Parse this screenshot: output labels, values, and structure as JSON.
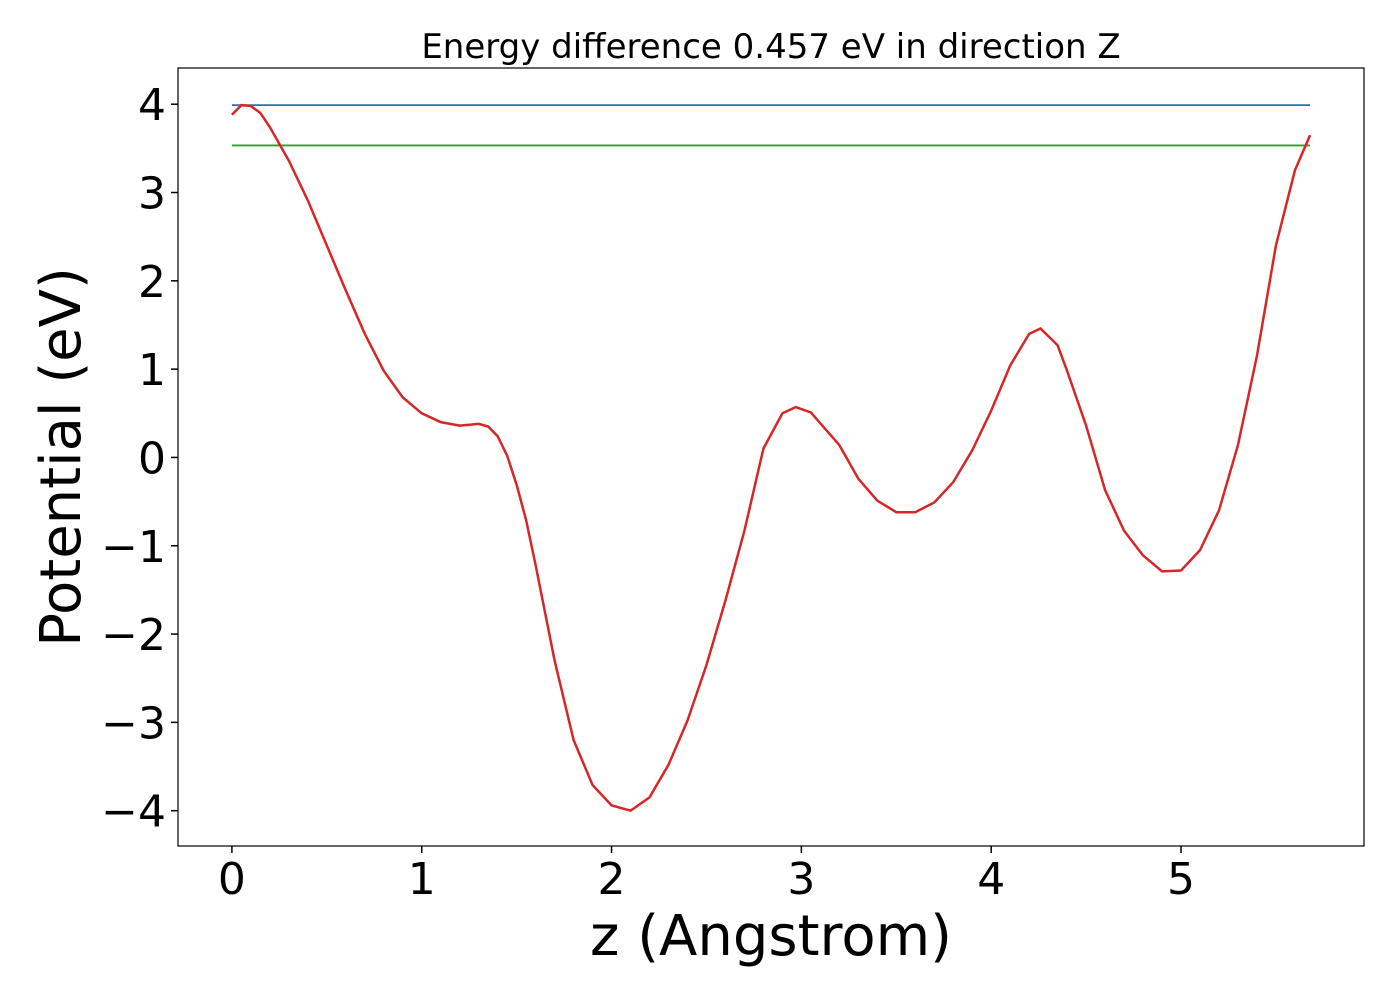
{
  "chart_data": {
    "type": "line",
    "title": "Energy difference 0.457 eV in direction Z",
    "xlabel": "z (Angstrom)",
    "ylabel": "Potential (eV)",
    "xlim": [
      -0.284,
      5.964
    ],
    "ylim": [
      -4.4,
      4.41
    ],
    "xticks": [
      0,
      1,
      2,
      3,
      4,
      5
    ],
    "yticks": [
      {
        "value": -4,
        "label": "−4"
      },
      {
        "value": -3,
        "label": "−3"
      },
      {
        "value": -2,
        "label": "−2"
      },
      {
        "value": -1,
        "label": "−1"
      },
      0,
      1,
      2,
      3,
      4
    ],
    "grid": false,
    "series": [
      {
        "color": "#1f77b4",
        "x": [
          0,
          5.68
        ],
        "values": [
          3.99,
          3.99
        ]
      },
      {
        "color": "#2ca02c",
        "x": [
          0,
          5.68
        ],
        "values": [
          3.533,
          3.533
        ]
      },
      {
        "color": "#d62728",
        "x": [
          0,
          0.05,
          0.1,
          0.15,
          0.2,
          0.3,
          0.4,
          0.5,
          0.6,
          0.7,
          0.8,
          0.9,
          1.0,
          1.1,
          1.2,
          1.3,
          1.35,
          1.4,
          1.45,
          1.5,
          1.55,
          1.6,
          1.7,
          1.8,
          1.9,
          2.0,
          2.1,
          2.2,
          2.3,
          2.4,
          2.5,
          2.6,
          2.7,
          2.8,
          2.9,
          2.97,
          3.05,
          3.2,
          3.3,
          3.4,
          3.5,
          3.6,
          3.7,
          3.8,
          3.9,
          4.0,
          4.1,
          4.2,
          4.26,
          4.35,
          4.4,
          4.5,
          4.6,
          4.7,
          4.8,
          4.9,
          5.0,
          5.1,
          5.2,
          5.3,
          5.4,
          5.5,
          5.6,
          5.68
        ],
        "values": [
          3.88,
          3.99,
          3.98,
          3.9,
          3.74,
          3.36,
          2.91,
          2.4,
          1.89,
          1.4,
          0.98,
          0.68,
          0.5,
          0.4,
          0.36,
          0.38,
          0.35,
          0.24,
          0.02,
          -0.31,
          -0.71,
          -1.22,
          -2.3,
          -3.2,
          -3.71,
          -3.94,
          -4.0,
          -3.85,
          -3.48,
          -2.98,
          -2.35,
          -1.62,
          -0.83,
          0.1,
          0.5,
          0.57,
          0.51,
          0.14,
          -0.24,
          -0.49,
          -0.62,
          -0.62,
          -0.51,
          -0.28,
          0.08,
          0.53,
          1.04,
          1.4,
          1.46,
          1.27,
          0.98,
          0.36,
          -0.37,
          -0.83,
          -1.11,
          -1.29,
          -1.28,
          -1.05,
          -0.6,
          0.14,
          1.15,
          2.4,
          3.25,
          3.65
        ]
      }
    ]
  }
}
